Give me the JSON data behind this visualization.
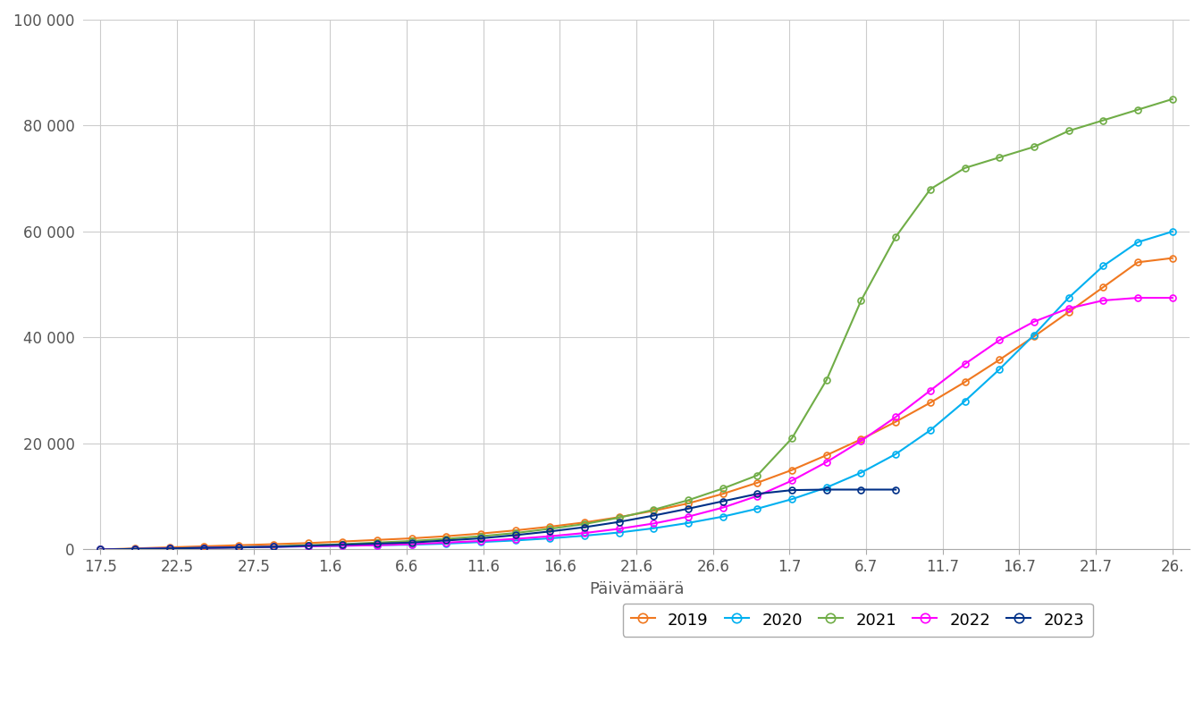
{
  "title": "",
  "xlabel": "Päivämäärä",
  "ylabel": "",
  "ylim": [
    0,
    100000
  ],
  "yticks": [
    0,
    20000,
    40000,
    60000,
    80000,
    100000
  ],
  "ytick_labels": [
    "0",
    "20 000",
    "40 000",
    "60 000",
    "80 000",
    "100 000"
  ],
  "background_color": "#ffffff",
  "grid_color": "#cccccc",
  "series": {
    "2019": {
      "color": "#f07820",
      "marker_face": "#f07820",
      "marker_edge": "#f07820"
    },
    "2020": {
      "color": "#00b0f0",
      "marker_face": "#00b0f0",
      "marker_edge": "#00b0f0"
    },
    "2021": {
      "color": "#70ad47",
      "marker_face": "#70ad47",
      "marker_edge": "#70ad47"
    },
    "2022": {
      "color": "#ff00ff",
      "marker_face": "#ff00ff",
      "marker_edge": "#ff00ff"
    },
    "2023": {
      "color": "#003087",
      "marker_face": "#003087",
      "marker_edge": "#003087"
    }
  },
  "xtick_labels": [
    "17.5",
    "22.5",
    "27.5",
    "1.6",
    "6.6",
    "11.6",
    "16.6",
    "21.6",
    "26.6",
    "1.7",
    "6.7",
    "11.7",
    "16.7",
    "21.7",
    "26."
  ],
  "data_2019": [
    0,
    200,
    400,
    600,
    800,
    1000,
    1200,
    1500,
    1800,
    2100,
    2500,
    3000,
    3600,
    4300,
    5100,
    6100,
    7300,
    8700,
    10500,
    12600,
    15000,
    17800,
    20800,
    24100,
    27700,
    31600,
    35800,
    40200,
    44800,
    49500,
    54200,
    55000
  ],
  "data_2020": [
    0,
    100,
    200,
    300,
    400,
    500,
    600,
    700,
    800,
    900,
    1100,
    1400,
    1700,
    2100,
    2600,
    3200,
    4000,
    5000,
    6200,
    7700,
    9500,
    11700,
    14500,
    18000,
    22500,
    28000,
    34000,
    40500,
    47500,
    53500,
    58000,
    60000
  ],
  "data_2021": [
    0,
    100,
    200,
    300,
    400,
    600,
    800,
    1000,
    1300,
    1600,
    2000,
    2500,
    3100,
    3900,
    4800,
    6000,
    7500,
    9300,
    11500,
    14000,
    21000,
    32000,
    47000,
    59000,
    68000,
    72000,
    74000,
    76000,
    79000,
    81000,
    83000,
    85000
  ],
  "data_2022": [
    0,
    100,
    200,
    300,
    400,
    500,
    600,
    700,
    800,
    1000,
    1300,
    1600,
    2000,
    2500,
    3100,
    3900,
    4900,
    6200,
    7900,
    10100,
    13000,
    16500,
    20500,
    25000,
    30000,
    35000,
    39500,
    43000,
    45500,
    47000,
    47500,
    47500
  ],
  "data_2023": [
    0,
    100,
    200,
    300,
    400,
    500,
    700,
    900,
    1100,
    1300,
    1700,
    2100,
    2700,
    3400,
    4200,
    5200,
    6400,
    7700,
    9100,
    10500,
    11200,
    11300,
    11300,
    11300,
    null,
    null,
    null,
    null,
    null,
    null,
    null,
    null
  ],
  "n_points": 32
}
